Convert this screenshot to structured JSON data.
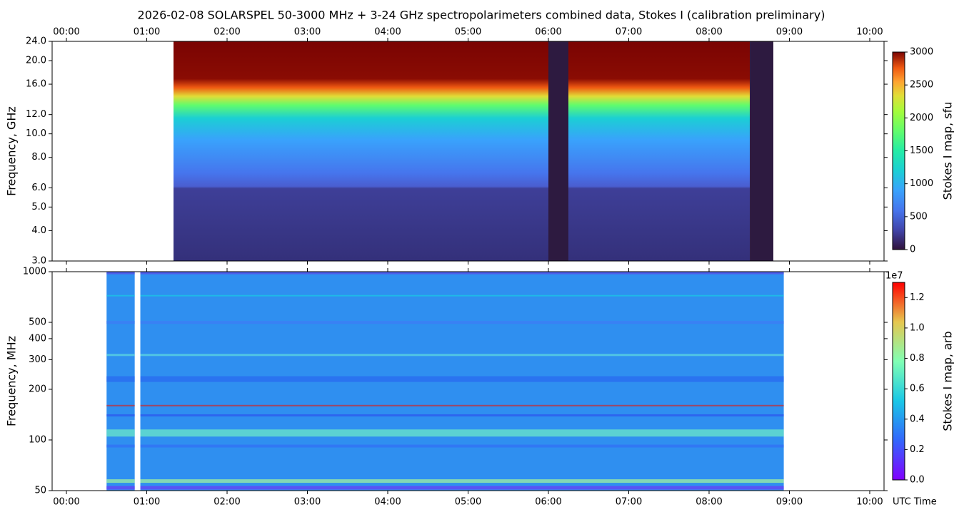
{
  "chart_data": [
    {
      "type": "heatmap",
      "title": "2026-02-08  SOLARSPEL  50-3000 MHz  +  3-24 GHz  spectropolarimeters combined data,  Stokes I  (calibration preliminary)",
      "ylabel": "Frequency, GHz",
      "xlim": [
        -0.178,
        10.178
      ],
      "xticks": [
        {
          "value": 0,
          "label": "00:00"
        },
        {
          "value": 1,
          "label": "01:00"
        },
        {
          "value": 2,
          "label": "02:00"
        },
        {
          "value": 3,
          "label": "03:00"
        },
        {
          "value": 4,
          "label": "04:00"
        },
        {
          "value": 5,
          "label": "05:00"
        },
        {
          "value": 6,
          "label": "06:00"
        },
        {
          "value": 7,
          "label": "07:00"
        },
        {
          "value": 8,
          "label": "08:00"
        },
        {
          "value": 9,
          "label": "09:00"
        },
        {
          "value": 10,
          "label": "10:00"
        }
      ],
      "xaxis_position": "top",
      "ylim": [
        3,
        24
      ],
      "log_y": true,
      "yticks": [
        {
          "value": 3,
          "label": "3.0"
        },
        {
          "value": 4,
          "label": "4.0"
        },
        {
          "value": 5,
          "label": "5.0"
        },
        {
          "value": 6,
          "label": "6.0"
        },
        {
          "value": 8,
          "label": "8.0"
        },
        {
          "value": 10,
          "label": "10.0"
        },
        {
          "value": 12,
          "label": "12.0"
        },
        {
          "value": 16,
          "label": "16.0"
        },
        {
          "value": 20,
          "label": "20.0"
        },
        {
          "value": 24,
          "label": "24.0"
        }
      ],
      "colormap": "turbo",
      "observed_intervals": [
        [
          1.333,
          6.0
        ],
        [
          6.249,
          8.507
        ]
      ],
      "gap_intervals": [
        [
          6.0,
          6.249
        ],
        [
          8.507,
          8.8
        ]
      ],
      "colorbar": {
        "label": "Stokes I map, sfu",
        "lim": [
          0,
          3000
        ],
        "ticks": [
          0,
          500,
          1000,
          1500,
          2000,
          2500,
          3000
        ]
      }
    },
    {
      "type": "heatmap",
      "ylabel": "Frequency, MHz",
      "xlabel": "UTC Time",
      "xlim": [
        -0.178,
        10.178
      ],
      "xticks": [
        {
          "value": 0,
          "label": "00:00"
        },
        {
          "value": 1,
          "label": "01:00"
        },
        {
          "value": 2,
          "label": "02:00"
        },
        {
          "value": 3,
          "label": "03:00"
        },
        {
          "value": 4,
          "label": "04:00"
        },
        {
          "value": 5,
          "label": "05:00"
        },
        {
          "value": 6,
          "label": "06:00"
        },
        {
          "value": 7,
          "label": "07:00"
        },
        {
          "value": 8,
          "label": "08:00"
        },
        {
          "value": 9,
          "label": "09:00"
        },
        {
          "value": 10,
          "label": "10:00"
        }
      ],
      "xaxis_position": "bottom",
      "ylim": [
        50,
        1000
      ],
      "log_y": true,
      "yticks": [
        50,
        100,
        200,
        300,
        400,
        500,
        1000
      ],
      "colormap": "rainbow",
      "observed_intervals": [
        [
          0.5,
          0.85
        ],
        [
          0.92,
          8.93
        ]
      ],
      "colorbar": {
        "label": "Stokes I map, arb",
        "offset_label": "1e7",
        "lim": [
          0,
          1.3
        ],
        "ticks": [
          {
            "value": 0,
            "label": "0.0"
          },
          {
            "value": 0.2,
            "label": "0.2"
          },
          {
            "value": 0.4,
            "label": "0.4"
          },
          {
            "value": 0.6,
            "label": "0.6"
          },
          {
            "value": 0.8,
            "label": "0.8"
          },
          {
            "value": 1,
            "label": "1.0"
          },
          {
            "value": 1.2,
            "label": "1.2"
          }
        ]
      }
    }
  ]
}
